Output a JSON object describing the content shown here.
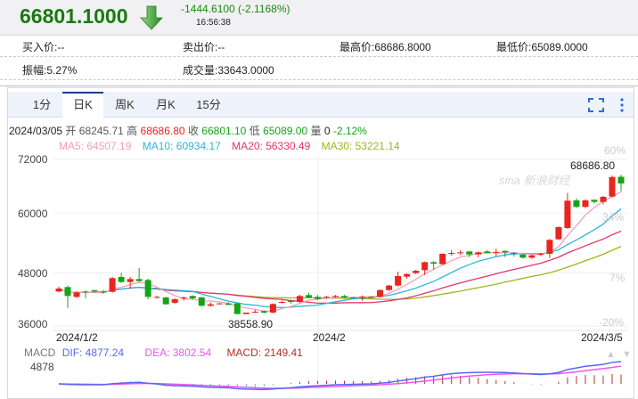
{
  "header": {
    "price": "66801.1000",
    "direction": "down",
    "change": "-1444.6100 (-2.1168%)",
    "time": "16:56:38",
    "color": "#1a7a12"
  },
  "info": {
    "bid": "买入价:--",
    "ask": "卖出价:--",
    "high": "最高价:68686.8000",
    "low": "最低价:65089.0000",
    "amplitude": "振幅:5.27%",
    "volume": "成交量:33643.0000"
  },
  "tabs": [
    {
      "label": "1分"
    },
    {
      "label": "日K",
      "active": true
    },
    {
      "label": "周K"
    },
    {
      "label": "月K"
    },
    {
      "label": "15分"
    }
  ],
  "toolbar": {
    "fullscreen_icon": "fullscreen-icon",
    "more_icon": "kebab-menu-icon"
  },
  "ohlc_line": {
    "date": "2024/03/05",
    "open_label": "开",
    "open": "68245.71",
    "high_label": "高",
    "high": "68686.80",
    "close_label": "收",
    "close": "66801.10",
    "low_label": "低",
    "low": "65089.00",
    "vol_label": "量",
    "vol": "0",
    "pct": "-2.12%"
  },
  "ma": {
    "ma5": "MA5: 64507.19",
    "ma10": "MA10: 60934.17",
    "ma20": "MA20: 56330.49",
    "ma30": "MA30: 53221.14"
  },
  "colors": {
    "up": "#e8251e",
    "down": "#17a317",
    "ma5": "#f59fb8",
    "ma10": "#2bb7dd",
    "ma20": "#e5336b",
    "ma30": "#9bb81c",
    "dif": "#5a66f0",
    "dea": "#ee55ee",
    "macd": "#b2302a"
  },
  "watermark": "sina 新浪财经",
  "chart_data": {
    "type": "candlestick",
    "y_ticks": [
      "72000",
      "60000",
      "48000",
      "36000"
    ],
    "ylim": [
      36000,
      72000
    ],
    "pct_ticks": [
      "60%",
      "34%",
      "7%",
      "-20%"
    ],
    "x_labels": [
      "2024/1/2",
      "2024/2",
      "2024/3/5"
    ],
    "max_label": "68686.80",
    "min_label": "38558.90",
    "candles": [
      [
        43444,
        44500,
        43300,
        44086
      ],
      [
        44407,
        44728,
        39915,
        42482
      ],
      [
        42290,
        43500,
        42000,
        43251
      ],
      [
        43444,
        43700,
        42000,
        43251
      ],
      [
        43701,
        43900,
        43200,
        43444
      ],
      [
        43444,
        43800,
        43000,
        43380
      ],
      [
        43380,
        46600,
        43200,
        46333
      ],
      [
        46590,
        47500,
        45300,
        45499
      ],
      [
        45499,
        46600,
        44000,
        46140
      ],
      [
        46140,
        48514,
        45500,
        45691
      ],
      [
        45948,
        46200,
        41800,
        42290
      ],
      [
        42161,
        42500,
        41900,
        42290
      ],
      [
        42161,
        42300,
        40600,
        40685
      ],
      [
        41006,
        42000,
        40800,
        41776
      ],
      [
        41969,
        42400,
        41500,
        42161
      ],
      [
        42482,
        42600,
        41700,
        41969
      ],
      [
        42161,
        42300,
        40200,
        40364
      ],
      [
        40364,
        41100,
        40200,
        40685
      ],
      [
        40800,
        41000,
        40700,
        40878
      ],
      [
        40878,
        41100,
        40500,
        40557
      ],
      [
        40878,
        41000,
        38558.9,
        38567
      ],
      [
        38567,
        38900,
        38600,
        38888
      ],
      [
        38950,
        39500,
        38800,
        39078
      ],
      [
        39207,
        39400,
        38700,
        38888
      ],
      [
        38900,
        40900,
        38700,
        40750
      ],
      [
        41000,
        41500,
        40900,
        41198
      ],
      [
        41454,
        41700,
        40800,
        41198
      ],
      [
        41198,
        42700,
        41000,
        42482
      ],
      [
        42675,
        43200,
        42000,
        42161
      ],
      [
        42290,
        42700,
        41600,
        41840
      ],
      [
        42200,
        42500,
        41900,
        42290
      ],
      [
        42400,
        42700,
        42100,
        42482
      ],
      [
        42482,
        42700,
        42000,
        42161
      ],
      [
        42161,
        42300,
        42000,
        42100
      ],
      [
        42200,
        42600,
        41500,
        42290
      ],
      [
        42250,
        42500,
        42000,
        42300
      ],
      [
        42290,
        43900,
        42100,
        43765
      ],
      [
        43765,
        44900,
        43600,
        44728
      ],
      [
        44728,
        47744,
        44500,
        46782
      ],
      [
        46654,
        47400,
        46200,
        47231
      ],
      [
        47423,
        48100,
        47200,
        47937
      ],
      [
        48064,
        49900,
        47000,
        49797
      ],
      [
        49797,
        50000,
        48200,
        49476
      ],
      [
        49348,
        51700,
        49200,
        51594
      ],
      [
        51700,
        52400,
        51200,
        51787
      ],
      [
        51800,
        52400,
        51300,
        51915
      ],
      [
        52108,
        52200,
        50900,
        51466
      ],
      [
        51466,
        52100,
        50800,
        51915
      ],
      [
        52108,
        52400,
        51700,
        51787
      ],
      [
        51915,
        52700,
        51000,
        52000
      ],
      [
        52236,
        52300,
        50900,
        51915
      ],
      [
        51787,
        52000,
        51000,
        51594
      ],
      [
        51466,
        51600,
        50600,
        50760
      ],
      [
        50760,
        51400,
        50500,
        51273
      ],
      [
        51500,
        51800,
        51100,
        51600
      ],
      [
        51594,
        54800,
        50700,
        54610
      ],
      [
        54739,
        57500,
        54600,
        57369
      ],
      [
        57177,
        64749,
        57000,
        63080
      ],
      [
        63144,
        63600,
        61500,
        61733
      ],
      [
        61733,
        63400,
        61500,
        63144
      ],
      [
        63272,
        63400,
        62500,
        62823
      ],
      [
        62823,
        64100,
        62300,
        63914
      ],
      [
        63978,
        68500,
        63800,
        68200
      ],
      [
        68245.71,
        68686.8,
        65089.0,
        66801.1
      ]
    ],
    "macd": {
      "label": "MACD",
      "dif": "DIF: 4877.24",
      "dea": "DEA: 3802.54",
      "macd": "MACD: 2149.41",
      "top_tick": "4878"
    }
  }
}
